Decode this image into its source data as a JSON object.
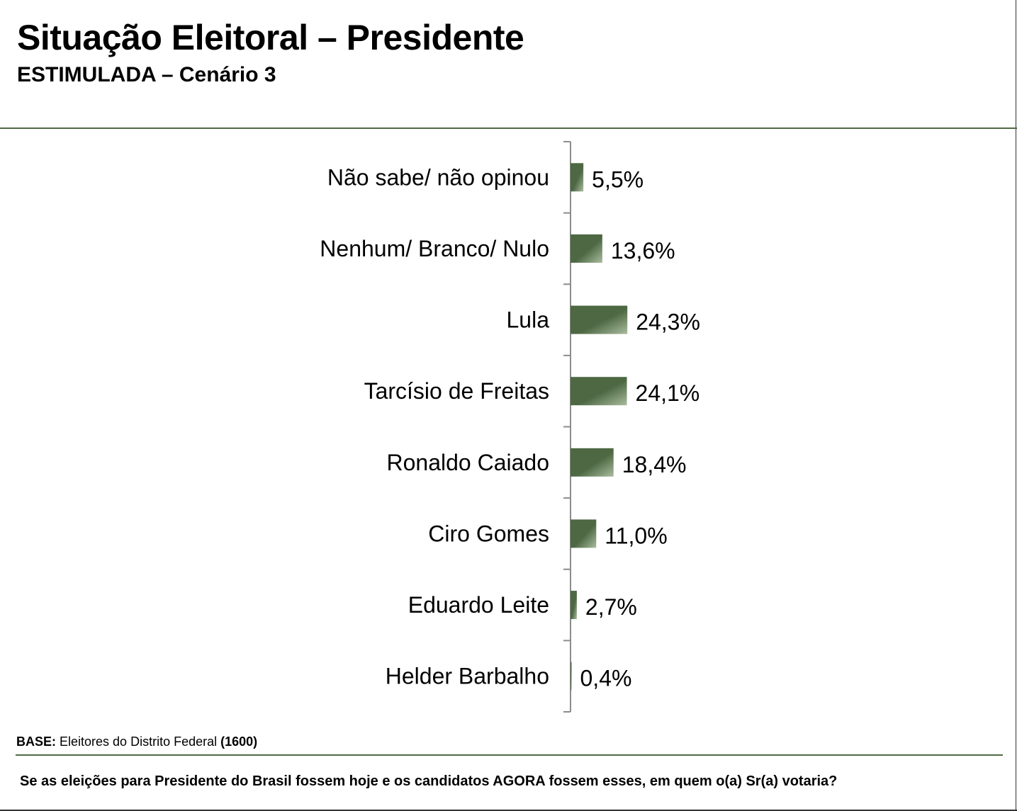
{
  "header": {
    "title": "Situação Eleitoral – Presidente",
    "subtitle": "ESTIMULADA – Cenário 3"
  },
  "footer": {
    "base_label": "BASE:",
    "base_text": " Eleitores do Distrito Federal ",
    "base_count": "(1600)",
    "question": "Se as eleições para Presidente do Brasil fossem hoje e os candidatos AGORA fossem esses, em quem o(a) Sr(a) votaria?"
  },
  "colors": {
    "bar_dark": "#4d6843",
    "bar_light": "#a9bc9e",
    "rule": "#4f6a44",
    "axis": "#8c8c8c"
  },
  "chart_data": {
    "type": "bar",
    "orientation": "horizontal",
    "categories": [
      "Não sabe/ não opinou",
      "Nenhum/ Branco/ Nulo",
      "Lula",
      "Tarcísio de Freitas",
      "Ronaldo Caiado",
      "Ciro Gomes",
      "Eduardo Leite",
      "Helder Barbalho"
    ],
    "values": [
      5.5,
      13.6,
      24.3,
      24.1,
      18.4,
      11.0,
      2.7,
      0.4
    ],
    "value_labels": [
      "5,5%",
      "13,6%",
      "24,3%",
      "24,1%",
      "18,4%",
      "11,0%",
      "2,7%",
      "0,4%"
    ],
    "unit": "%",
    "title": "",
    "xlabel": "",
    "ylabel": "",
    "grid": false,
    "legend": "none"
  }
}
